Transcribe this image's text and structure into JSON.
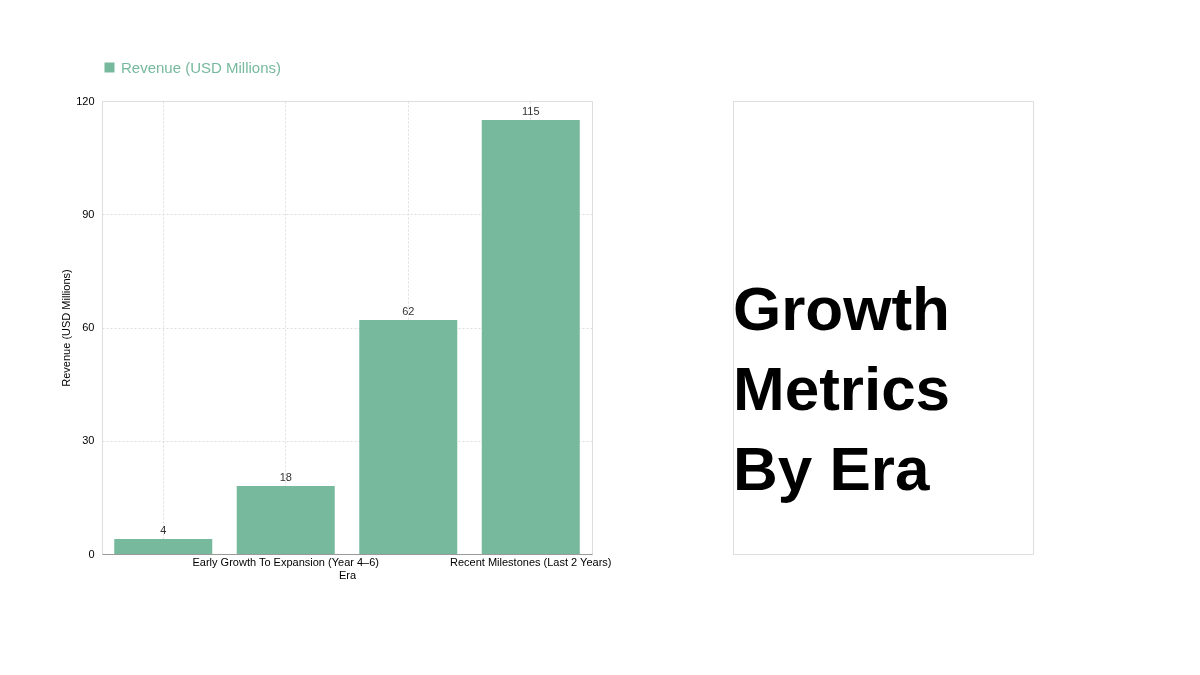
{
  "chart_data": {
    "type": "bar",
    "title": "Growth Metrics By Era",
    "xlabel": "Era",
    "ylabel": "Revenue (USD Millions)",
    "categories": [
      null,
      "Early Growth To Expansion (Year 4–6)",
      null,
      "Recent Milestones (Last 2 Years)"
    ],
    "series": [
      {
        "name": "Revenue (USD Millions)",
        "color": "#76b99d",
        "values": [
          4,
          18,
          62,
          115
        ]
      }
    ],
    "ylim": [
      0,
      120
    ],
    "yticks": [
      0,
      30,
      60,
      90,
      120
    ],
    "grid": true,
    "legend": "top",
    "data_labels": true
  }
}
